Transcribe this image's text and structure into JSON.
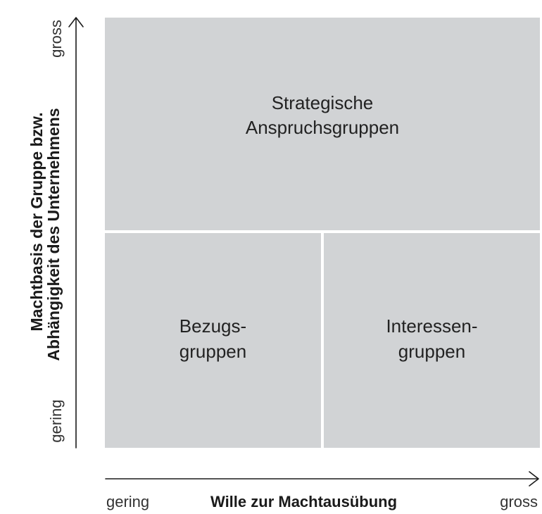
{
  "quadrants": {
    "top": {
      "line1": "Strategische",
      "line2": "Anspruchsgruppen"
    },
    "bottom_left": {
      "line1": "Bezugs-",
      "line2": "gruppen"
    },
    "bottom_right": {
      "line1": "Interessen-",
      "line2": "gruppen"
    }
  },
  "y_axis": {
    "title_line1": "Machtbasis der Gruppe bzw.",
    "title_line2": "Abhängigkeit des Unternehmens",
    "high_label": "gross",
    "low_label": "gering"
  },
  "x_axis": {
    "title": "Wille zur Machtausübung",
    "low_label": "gering",
    "high_label": "gross"
  },
  "colors": {
    "cell_fill": "#d1d3d5",
    "axis_line": "#1a1a1a"
  }
}
